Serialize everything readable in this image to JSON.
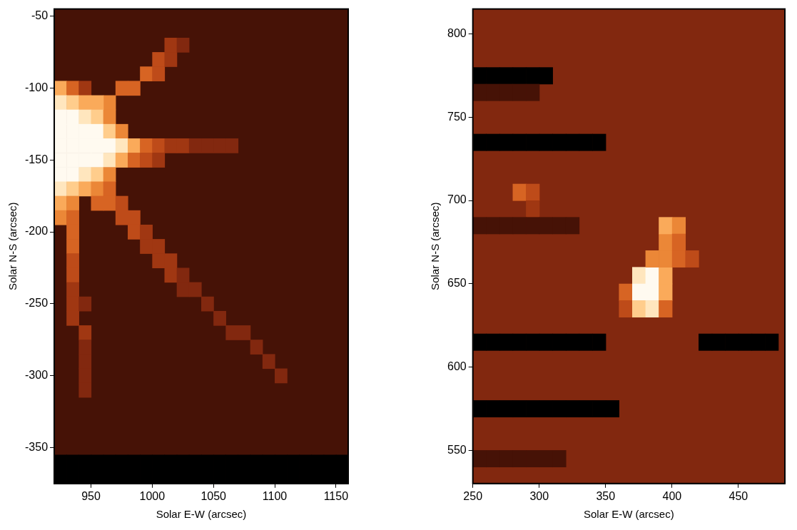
{
  "chart_data": [
    {
      "type": "heatmap",
      "x_label": "Solar E-W (arcsec)",
      "y_label": "Solar N-S (arcsec)",
      "xlim": [
        920,
        1160
      ],
      "ylim": [
        -375,
        -45
      ],
      "xticks": [
        950,
        1000,
        1050,
        1100,
        1150
      ],
      "yticks": [
        -350,
        -300,
        -250,
        -200,
        -150,
        -100,
        -50
      ],
      "grid": false,
      "cell_size": 10,
      "background": 1,
      "cells": [
        [
          925,
          -100,
          7
        ],
        [
          935,
          -100,
          5
        ],
        [
          945,
          -100,
          3
        ],
        [
          965,
          -110,
          6
        ],
        [
          975,
          -100,
          5
        ],
        [
          985,
          -100,
          5
        ],
        [
          995,
          -90,
          5
        ],
        [
          1005,
          -90,
          4
        ],
        [
          1005,
          -80,
          4
        ],
        [
          1015,
          -80,
          3
        ],
        [
          1015,
          -70,
          3
        ],
        [
          1025,
          -70,
          2
        ],
        [
          925,
          -110,
          9
        ],
        [
          935,
          -110,
          8
        ],
        [
          945,
          -110,
          7
        ],
        [
          955,
          -110,
          7
        ],
        [
          925,
          -120,
          10
        ],
        [
          935,
          -120,
          10
        ],
        [
          945,
          -120,
          9
        ],
        [
          955,
          -120,
          8
        ],
        [
          965,
          -120,
          6
        ],
        [
          925,
          -130,
          10
        ],
        [
          935,
          -130,
          10
        ],
        [
          945,
          -130,
          10
        ],
        [
          955,
          -130,
          10
        ],
        [
          965,
          -130,
          8
        ],
        [
          975,
          -130,
          6
        ],
        [
          925,
          -140,
          10
        ],
        [
          935,
          -140,
          10
        ],
        [
          945,
          -140,
          10
        ],
        [
          955,
          -140,
          10
        ],
        [
          965,
          -140,
          10
        ],
        [
          975,
          -140,
          9
        ],
        [
          985,
          -140,
          7
        ],
        [
          995,
          -140,
          5
        ],
        [
          1005,
          -140,
          4
        ],
        [
          1015,
          -140,
          3
        ],
        [
          1025,
          -140,
          3
        ],
        [
          1035,
          -140,
          2
        ],
        [
          1045,
          -140,
          2
        ],
        [
          1055,
          -140,
          2
        ],
        [
          1065,
          -140,
          2
        ],
        [
          925,
          -150,
          10
        ],
        [
          935,
          -150,
          10
        ],
        [
          945,
          -150,
          10
        ],
        [
          955,
          -150,
          10
        ],
        [
          965,
          -150,
          9
        ],
        [
          975,
          -150,
          7
        ],
        [
          985,
          -150,
          5
        ],
        [
          995,
          -150,
          4
        ],
        [
          1005,
          -150,
          3
        ],
        [
          925,
          -160,
          10
        ],
        [
          935,
          -160,
          10
        ],
        [
          945,
          -160,
          9
        ],
        [
          955,
          -160,
          8
        ],
        [
          965,
          -160,
          6
        ],
        [
          925,
          -170,
          9
        ],
        [
          935,
          -170,
          8
        ],
        [
          945,
          -170,
          7
        ],
        [
          955,
          -170,
          6
        ],
        [
          965,
          -170,
          5
        ],
        [
          925,
          -180,
          7
        ],
        [
          935,
          -180,
          6
        ],
        [
          955,
          -180,
          5
        ],
        [
          965,
          -180,
          5
        ],
        [
          975,
          -180,
          4
        ],
        [
          925,
          -190,
          6
        ],
        [
          935,
          -190,
          5
        ],
        [
          975,
          -190,
          4
        ],
        [
          985,
          -190,
          4
        ],
        [
          935,
          -200,
          5
        ],
        [
          985,
          -200,
          4
        ],
        [
          995,
          -200,
          3
        ],
        [
          935,
          -210,
          5
        ],
        [
          995,
          -210,
          3
        ],
        [
          1005,
          -210,
          3
        ],
        [
          935,
          -220,
          4
        ],
        [
          1005,
          -220,
          3
        ],
        [
          1015,
          -220,
          3
        ],
        [
          935,
          -230,
          4
        ],
        [
          1015,
          -230,
          3
        ],
        [
          1025,
          -230,
          2
        ],
        [
          935,
          -240,
          3
        ],
        [
          1025,
          -240,
          2
        ],
        [
          1035,
          -240,
          2
        ],
        [
          935,
          -250,
          3
        ],
        [
          945,
          -250,
          2
        ],
        [
          1045,
          -250,
          2
        ],
        [
          935,
          -260,
          3
        ],
        [
          1055,
          -260,
          2
        ],
        [
          945,
          -270,
          3
        ],
        [
          1065,
          -270,
          2
        ],
        [
          1075,
          -270,
          2
        ],
        [
          945,
          -280,
          2
        ],
        [
          1085,
          -280,
          2
        ],
        [
          945,
          -290,
          2
        ],
        [
          1095,
          -290,
          2
        ],
        [
          945,
          -300,
          2
        ],
        [
          1105,
          -300,
          2
        ],
        [
          945,
          -310,
          2
        ],
        [
          925,
          -360,
          0
        ],
        [
          935,
          -360,
          0
        ],
        [
          945,
          -360,
          0
        ],
        [
          955,
          -360,
          0
        ],
        [
          965,
          -360,
          0
        ],
        [
          975,
          -360,
          0
        ],
        [
          985,
          -360,
          0
        ],
        [
          995,
          -360,
          0
        ],
        [
          1005,
          -360,
          0
        ],
        [
          1015,
          -360,
          0
        ],
        [
          1025,
          -360,
          0
        ],
        [
          1035,
          -360,
          0
        ],
        [
          1045,
          -360,
          0
        ],
        [
          1055,
          -360,
          0
        ],
        [
          1065,
          -360,
          0
        ],
        [
          1075,
          -360,
          0
        ],
        [
          1085,
          -360,
          0
        ],
        [
          1095,
          -360,
          0
        ],
        [
          1105,
          -360,
          0
        ],
        [
          1115,
          -360,
          0
        ],
        [
          1125,
          -360,
          0
        ],
        [
          1135,
          -360,
          0
        ],
        [
          1145,
          -360,
          0
        ],
        [
          1155,
          -360,
          0
        ],
        [
          925,
          -370,
          0
        ],
        [
          935,
          -370,
          0
        ],
        [
          945,
          -370,
          0
        ],
        [
          955,
          -370,
          0
        ],
        [
          965,
          -370,
          0
        ],
        [
          975,
          -370,
          0
        ],
        [
          985,
          -370,
          0
        ],
        [
          995,
          -370,
          0
        ],
        [
          1005,
          -370,
          0
        ],
        [
          1015,
          -370,
          0
        ],
        [
          1025,
          -370,
          0
        ],
        [
          1035,
          -370,
          0
        ],
        [
          1045,
          -370,
          0
        ],
        [
          1055,
          -370,
          0
        ],
        [
          1065,
          -370,
          0
        ],
        [
          1075,
          -370,
          0
        ],
        [
          1085,
          -370,
          0
        ],
        [
          1095,
          -370,
          0
        ],
        [
          1105,
          -370,
          0
        ],
        [
          1115,
          -370,
          0
        ],
        [
          1125,
          -370,
          0
        ],
        [
          1135,
          -370,
          0
        ],
        [
          1145,
          -370,
          0
        ],
        [
          1155,
          -370,
          0
        ]
      ]
    },
    {
      "type": "heatmap",
      "x_label": "Solar E-W (arcsec)",
      "y_label": "Solar N-S (arcsec)",
      "xlim": [
        250,
        485
      ],
      "ylim": [
        530,
        815
      ],
      "xticks": [
        250,
        300,
        350,
        400,
        450
      ],
      "yticks": [
        550,
        600,
        650,
        700,
        750,
        800
      ],
      "grid": false,
      "cell_size": 10,
      "background": 2,
      "cells": [
        [
          285,
          705,
          5
        ],
        [
          295,
          705,
          4
        ],
        [
          295,
          695,
          3
        ],
        [
          365,
          645,
          5
        ],
        [
          365,
          635,
          4
        ],
        [
          375,
          655,
          9
        ],
        [
          385,
          655,
          10
        ],
        [
          375,
          645,
          10
        ],
        [
          385,
          645,
          10
        ],
        [
          375,
          635,
          8
        ],
        [
          385,
          635,
          9
        ],
        [
          395,
          645,
          7
        ],
        [
          395,
          655,
          7
        ],
        [
          395,
          635,
          5
        ],
        [
          395,
          665,
          6
        ],
        [
          385,
          665,
          6
        ],
        [
          395,
          675,
          6
        ],
        [
          395,
          685,
          7
        ],
        [
          405,
          685,
          6
        ],
        [
          405,
          675,
          5
        ],
        [
          405,
          665,
          5
        ],
        [
          415,
          665,
          4
        ],
        [
          255,
          775,
          0
        ],
        [
          265,
          775,
          0
        ],
        [
          275,
          775,
          0
        ],
        [
          285,
          775,
          0
        ],
        [
          295,
          775,
          0
        ],
        [
          305,
          775,
          0
        ],
        [
          255,
          765,
          1
        ],
        [
          265,
          765,
          1
        ],
        [
          275,
          765,
          1
        ],
        [
          285,
          765,
          1
        ],
        [
          295,
          765,
          1
        ],
        [
          255,
          735,
          0
        ],
        [
          265,
          735,
          0
        ],
        [
          275,
          735,
          0
        ],
        [
          285,
          735,
          0
        ],
        [
          295,
          735,
          0
        ],
        [
          305,
          735,
          0
        ],
        [
          315,
          735,
          0
        ],
        [
          325,
          735,
          0
        ],
        [
          335,
          735,
          0
        ],
        [
          345,
          735,
          0
        ],
        [
          255,
          685,
          1
        ],
        [
          265,
          685,
          1
        ],
        [
          275,
          685,
          1
        ],
        [
          285,
          685,
          1
        ],
        [
          295,
          685,
          1
        ],
        [
          305,
          685,
          1
        ],
        [
          315,
          685,
          1
        ],
        [
          325,
          685,
          1
        ],
        [
          255,
          615,
          0
        ],
        [
          265,
          615,
          0
        ],
        [
          275,
          615,
          0
        ],
        [
          285,
          615,
          0
        ],
        [
          295,
          615,
          0
        ],
        [
          305,
          615,
          0
        ],
        [
          315,
          615,
          0
        ],
        [
          325,
          615,
          0
        ],
        [
          335,
          615,
          0
        ],
        [
          345,
          615,
          0
        ],
        [
          425,
          615,
          0
        ],
        [
          435,
          615,
          0
        ],
        [
          445,
          615,
          0
        ],
        [
          455,
          615,
          0
        ],
        [
          465,
          615,
          0
        ],
        [
          475,
          615,
          0
        ],
        [
          255,
          575,
          0
        ],
        [
          265,
          575,
          0
        ],
        [
          275,
          575,
          0
        ],
        [
          285,
          575,
          0
        ],
        [
          295,
          575,
          0
        ],
        [
          305,
          575,
          0
        ],
        [
          315,
          575,
          0
        ],
        [
          325,
          575,
          0
        ],
        [
          335,
          575,
          0
        ],
        [
          345,
          575,
          0
        ],
        [
          355,
          575,
          0
        ],
        [
          255,
          545,
          1
        ],
        [
          265,
          545,
          1
        ],
        [
          275,
          545,
          1
        ],
        [
          285,
          545,
          1
        ],
        [
          295,
          545,
          1
        ],
        [
          305,
          545,
          1
        ],
        [
          315,
          545,
          1
        ]
      ]
    }
  ]
}
